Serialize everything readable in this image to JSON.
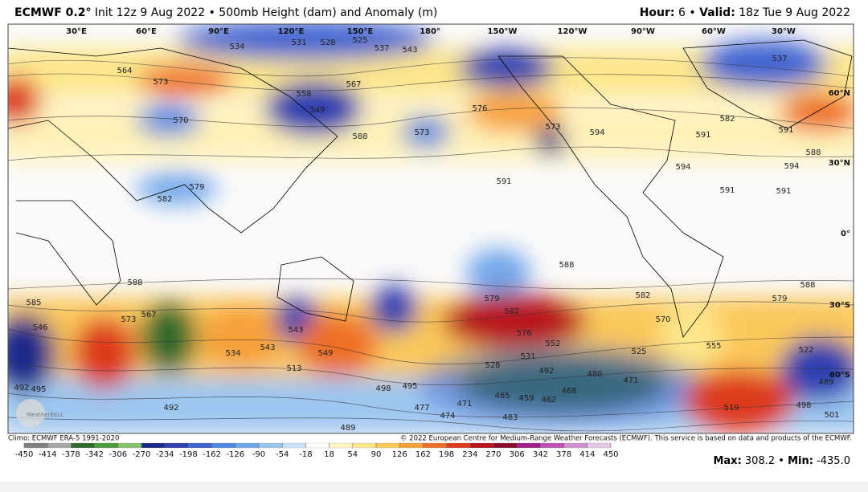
{
  "header": {
    "model": "ECMWF 0.2°",
    "description": "Init 12z 9 Aug 2022 • 500mb Height (dam) and Anomaly (m)",
    "hour_label": "Hour:",
    "hour": "6 •",
    "valid_label": "Valid:",
    "valid": "18z Tue 9 Aug 2022"
  },
  "map": {
    "longitude_labels": [
      "30°E",
      "60°E",
      "90°E",
      "120°E",
      "150°E",
      "180°",
      "150°W",
      "120°W",
      "90°W",
      "60°W",
      "30°W"
    ],
    "latitude_labels": [
      "60°N",
      "30°N",
      "0°",
      "30°S",
      "60°S"
    ],
    "contour_labels": [
      531,
      528,
      525,
      537,
      534,
      543,
      537,
      564,
      573,
      567,
      558,
      549,
      570,
      576,
      573,
      573,
      594,
      588,
      591,
      582,
      591,
      588,
      594,
      594,
      582,
      579,
      591,
      591,
      591,
      588,
      588,
      588,
      579,
      582,
      585,
      579,
      582,
      576,
      552,
      531,
      528,
      573,
      567,
      543,
      549,
      534,
      543,
      513,
      525,
      522,
      492,
      480,
      471,
      495,
      498,
      468,
      465,
      459,
      462,
      477,
      474,
      471,
      483,
      492,
      489,
      519,
      501,
      498,
      489,
      555,
      570,
      546,
      492,
      495
    ],
    "logo": "WeatherBELL"
  },
  "footer": {
    "climo": "Climo: ECMWF ERA-5 1991-2020",
    "copyright": "© 2022 European Centre for Medium-Range Weather Forecasts (ECMWF). This service is based on data and products of the ECMWF.",
    "max_label": "Max:",
    "max": "308.2 •",
    "min_label": "Min:",
    "min": "-435.0"
  },
  "colorbar": {
    "ticks": [
      -450,
      -414,
      -378,
      -342,
      -306,
      -270,
      -234,
      -198,
      -162,
      -126,
      -90,
      -54,
      -18,
      18,
      54,
      90,
      126,
      162,
      198,
      234,
      270,
      306,
      342,
      378,
      414,
      450
    ],
    "colors": [
      "#7f7f7f",
      "#a6a6a6",
      "#2f6b2f",
      "#4b9a3b",
      "#86c26a",
      "#1a2a8a",
      "#2f3fb0",
      "#3f63d0",
      "#4f86e0",
      "#6fa6ea",
      "#9cc6f0",
      "#c8e0f6",
      "#ffffff",
      "#fff5c0",
      "#fde68a",
      "#fbc85a",
      "#f6a03a",
      "#ee7028",
      "#dd3a1c",
      "#b8141c",
      "#8a0a2a",
      "#a0208a",
      "#c050b8",
      "#d090d0",
      "#e6c8e6"
    ]
  }
}
